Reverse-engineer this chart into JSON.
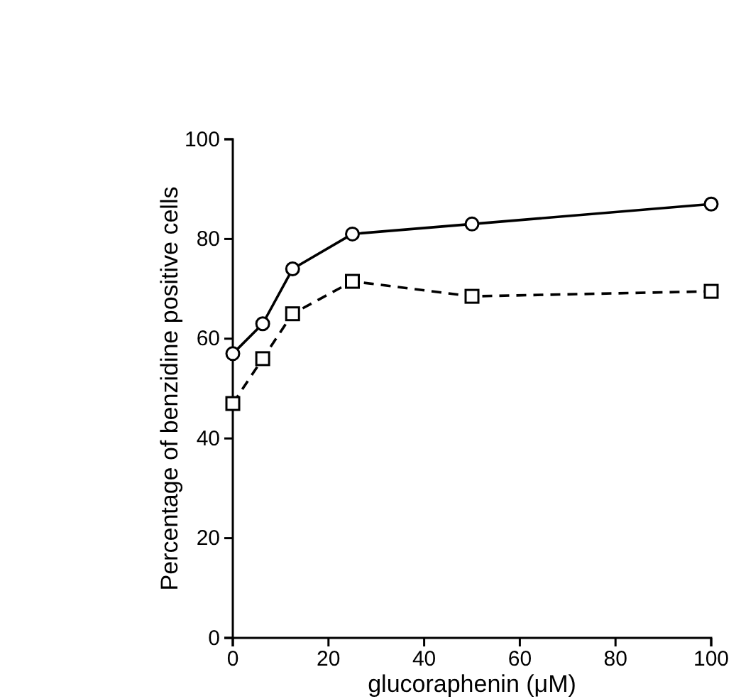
{
  "chart_data": {
    "type": "line",
    "xlabel": "glucoraphenin (μM)",
    "ylabel": "Percentage of benzidine positive cells",
    "x": [
      0,
      6.25,
      12.5,
      25,
      50,
      100
    ],
    "xlim": [
      0,
      100
    ],
    "xticks": [
      0,
      20,
      40,
      60,
      80,
      100
    ],
    "ylim": [
      0,
      100
    ],
    "yticks": [
      0,
      20,
      40,
      60,
      80,
      100
    ],
    "grid": false,
    "series": [
      {
        "color": "#000000",
        "marker": "circle",
        "line_style": "solid",
        "values": [
          57,
          63,
          74,
          81,
          83,
          87
        ]
      },
      {
        "color": "#000000",
        "marker": "square",
        "line_style": "dashed",
        "values": [
          47,
          56,
          65,
          71.5,
          68.5,
          69.5
        ]
      }
    ]
  }
}
